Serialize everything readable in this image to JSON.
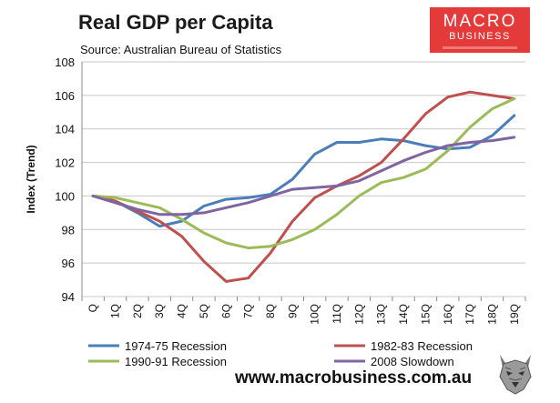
{
  "header": {
    "title": "Real GDP per Capita",
    "subtitle": "Source: Australian Bureau of Statistics"
  },
  "logo": {
    "line1": "MACRO",
    "line2": "BUSINESS",
    "background_color": "#e53a3a"
  },
  "footer": {
    "url": "www.macrobusiness.com.au",
    "mascot_icon": "wolf-icon"
  },
  "chart_data": {
    "type": "line",
    "title": "Real GDP per Capita",
    "subtitle": "Source: Australian Bureau of Statistics",
    "xlabel": "",
    "ylabel": "Index (Trend)",
    "ylim": [
      94,
      108
    ],
    "yticks": [
      94,
      96,
      98,
      100,
      102,
      104,
      106,
      108
    ],
    "grid": "horizontal",
    "legend_position": "bottom",
    "categories": [
      "Q",
      "1Q",
      "2Q",
      "3Q",
      "4Q",
      "5Q",
      "6Q",
      "7Q",
      "8Q",
      "9Q",
      "10Q",
      "11Q",
      "12Q",
      "13Q",
      "14Q",
      "15Q",
      "16Q",
      "17Q",
      "18Q",
      "19Q"
    ],
    "series": [
      {
        "name": "1974-75 Recession",
        "color": "#4a7ebb",
        "values": [
          100.0,
          99.7,
          99.0,
          98.2,
          98.5,
          99.4,
          99.8,
          99.9,
          100.1,
          101.0,
          102.5,
          103.2,
          103.2,
          103.4,
          103.3,
          103.0,
          102.8,
          102.9,
          103.6,
          104.8
        ]
      },
      {
        "name": "1982-83 Recession",
        "color": "#c0504d",
        "values": [
          100.0,
          99.7,
          99.1,
          98.5,
          97.6,
          96.1,
          94.9,
          95.1,
          96.6,
          98.5,
          99.9,
          100.6,
          101.2,
          102.0,
          103.4,
          104.9,
          105.9,
          106.2,
          106.0,
          105.8
        ]
      },
      {
        "name": "1990-91 Recession",
        "color": "#9bbb59",
        "values": [
          100.0,
          99.9,
          99.6,
          99.3,
          98.6,
          97.8,
          97.2,
          96.9,
          97.0,
          97.4,
          98.0,
          98.9,
          100.0,
          100.8,
          101.1,
          101.6,
          102.7,
          104.1,
          105.2,
          105.8
        ]
      },
      {
        "name": "2008 Slowdown",
        "color": "#8064a2",
        "values": [
          100.0,
          99.6,
          99.2,
          98.9,
          98.9,
          99.0,
          99.3,
          99.6,
          100.0,
          100.4,
          100.5,
          100.6,
          100.9,
          101.5,
          102.1,
          102.6,
          103.0,
          103.2,
          103.3,
          103.5
        ]
      }
    ]
  }
}
